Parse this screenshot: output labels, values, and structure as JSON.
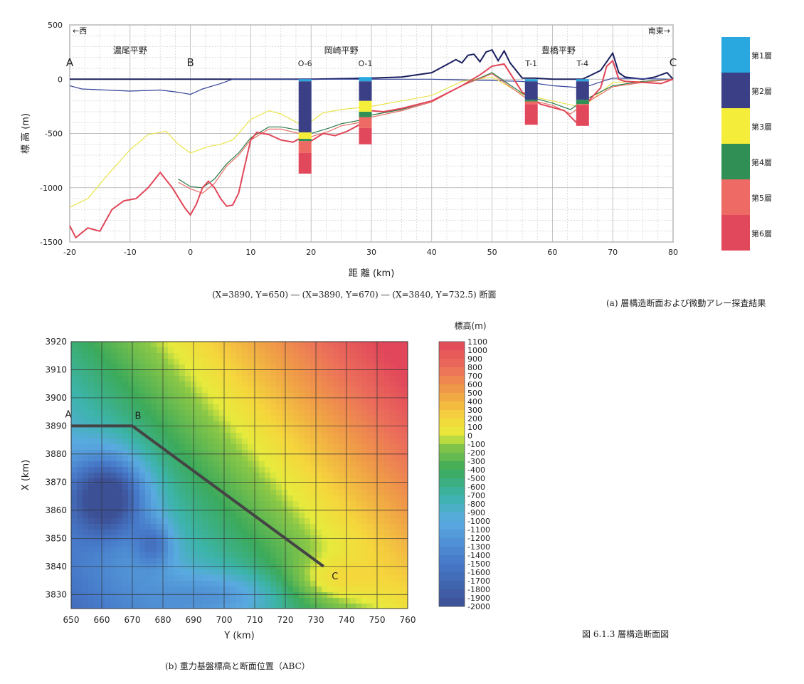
{
  "section": {
    "left_label": "←西",
    "right_label": "南東→",
    "ylabel": "標 高 (m)",
    "xlabel": "距 離 (km)",
    "xticks": [
      -20,
      -10,
      0,
      10,
      20,
      30,
      40,
      50,
      60,
      70,
      80
    ],
    "yticks": [
      500,
      0,
      -500,
      -1000,
      -1500
    ],
    "xlim": [
      -20,
      80
    ],
    "ylim": [
      -1500,
      500
    ],
    "point_labels": [
      {
        "text": "A",
        "x": -20
      },
      {
        "text": "B",
        "x": 0
      },
      {
        "text": "C",
        "x": 80
      }
    ],
    "plain_labels": [
      {
        "text": "濃尾平野",
        "x": -10
      },
      {
        "text": "岡崎平野",
        "x": 25
      },
      {
        "text": "豊橋平野",
        "x": 61
      }
    ],
    "subtitle": "(X=3890, Y=650) ― (X=3890, Y=670) ― (X=3840, Y=732.5) 断面",
    "caption": "(a) 層構造断面および微動アレー探査結果"
  },
  "layers_legend": [
    {
      "label": "第1層",
      "color": "#29a8e0"
    },
    {
      "label": "第2層",
      "color": "#3a3f86"
    },
    {
      "label": "第3層",
      "color": "#f4ee3a"
    },
    {
      "label": "第4層",
      "color": "#2f8f55"
    },
    {
      "label": "第5層",
      "color": "#ee6a64"
    },
    {
      "label": "第6層",
      "color": "#e2485c"
    }
  ],
  "map": {
    "colorbar_title": "標高(m)",
    "colorbar_ticks": [
      "1100",
      "1000",
      "900",
      "800",
      "700",
      "600",
      "500",
      "400",
      "300",
      "200",
      "100",
      "0",
      "-100",
      "-200",
      "-300",
      "-400",
      "-500",
      "-600",
      "-700",
      "-800",
      "-900",
      "-1000",
      "-1100",
      "-1200",
      "-1300",
      "-1400",
      "-1500",
      "-1600",
      "-1700",
      "-1800",
      "-1900",
      "-2000"
    ],
    "xlabel": "Y (km)",
    "ylabel": "X (km)",
    "xticks": [
      650,
      660,
      670,
      680,
      690,
      700,
      710,
      720,
      730,
      740,
      750,
      760
    ],
    "yticks": [
      3920,
      3910,
      3900,
      3890,
      3880,
      3870,
      3860,
      3850,
      3840,
      3830
    ],
    "point_labels": [
      "A",
      "B",
      "C"
    ],
    "caption": "(b) 重力基盤標高と断面位置（ABC）"
  },
  "figure_caption": "図 6.1.3 層構造断面図",
  "chart_data": [
    {
      "type": "line",
      "title": "",
      "xlabel": "距 離 (km)",
      "ylabel": "標 高 (m)",
      "xlim": [
        -20,
        80
      ],
      "ylim": [
        -1500,
        500
      ],
      "grid": true,
      "series": [
        {
          "name": "",
          "color": "#1a1f5e",
          "x": [
            -20,
            0,
            20,
            30,
            35,
            40,
            42,
            44,
            45,
            46,
            47,
            48,
            49,
            50,
            51,
            52,
            53,
            55,
            57,
            60,
            63,
            65,
            68,
            69,
            70,
            71,
            72,
            75,
            77,
            79,
            80
          ],
          "y": [
            0,
            0,
            0,
            10,
            20,
            60,
            120,
            180,
            150,
            220,
            230,
            160,
            250,
            270,
            170,
            260,
            150,
            10,
            10,
            0,
            0,
            0,
            80,
            160,
            240,
            60,
            20,
            0,
            20,
            60,
            0
          ]
        },
        {
          "name": "",
          "color": "#35449a",
          "x": [
            -20,
            -18,
            -10,
            -5,
            -2,
            0,
            2,
            5,
            7,
            10,
            20,
            30,
            40,
            55,
            60,
            65,
            70,
            80
          ],
          "y": [
            -60,
            -90,
            -110,
            -100,
            -120,
            -140,
            -90,
            -40,
            0,
            0,
            0,
            0,
            0,
            -20,
            -60,
            -80,
            10,
            0
          ]
        },
        {
          "name": "",
          "color": "#e9e44a",
          "x": [
            -20,
            -17,
            -14,
            -10,
            -7,
            -4,
            -2,
            0,
            3,
            5,
            7,
            8,
            10,
            13,
            15,
            18,
            20,
            22,
            25,
            30,
            35,
            40,
            45,
            50,
            55,
            60,
            65,
            70,
            75,
            80
          ],
          "y": [
            -1180,
            -1100,
            -900,
            -650,
            -510,
            -480,
            -600,
            -680,
            -620,
            -600,
            -560,
            -500,
            -370,
            -290,
            -320,
            -410,
            -390,
            -310,
            -280,
            -250,
            -200,
            -150,
            -20,
            20,
            -140,
            -200,
            -260,
            -30,
            -20,
            0
          ]
        },
        {
          "name": "",
          "color": "#2b7a48",
          "x": [
            -2,
            0,
            2,
            4,
            6,
            8,
            10,
            13,
            15,
            18,
            20,
            23,
            25,
            28,
            30,
            35,
            40,
            45,
            50,
            55,
            56,
            60,
            63,
            65,
            70,
            75,
            80
          ],
          "y": [
            -920,
            -990,
            -1000,
            -920,
            -780,
            -680,
            -540,
            -440,
            -440,
            -470,
            -500,
            -450,
            -410,
            -380,
            -330,
            -280,
            -200,
            -60,
            60,
            -130,
            -160,
            -220,
            -280,
            -200,
            -60,
            -20,
            0
          ]
        },
        {
          "name": "",
          "color": "#e86f66",
          "x": [
            -2,
            0,
            2,
            4,
            6,
            8,
            10,
            13,
            15,
            18,
            20,
            23,
            25,
            28,
            30,
            35,
            40,
            45,
            50,
            55,
            56,
            60,
            63,
            65,
            70,
            75,
            80
          ],
          "y": [
            -950,
            -1010,
            -1050,
            -960,
            -800,
            -700,
            -560,
            -460,
            -460,
            -500,
            -530,
            -480,
            -430,
            -400,
            -350,
            -290,
            -210,
            -60,
            50,
            -150,
            -190,
            -240,
            -320,
            -240,
            -70,
            -30,
            0
          ]
        },
        {
          "name": "",
          "color": "#e04658",
          "x": [
            -20,
            -19,
            -17,
            -15,
            -13,
            -11,
            -9,
            -7,
            -5,
            -3,
            -1,
            0,
            1,
            2,
            3,
            4,
            5,
            6,
            7,
            8,
            9,
            10,
            11,
            13,
            15,
            17,
            18,
            20,
            22,
            24,
            26,
            28,
            30,
            32,
            35,
            40,
            45,
            48,
            50,
            52,
            55,
            56,
            58,
            60,
            62,
            64,
            65,
            66,
            68,
            69,
            70,
            71,
            72,
            75,
            78,
            80
          ],
          "y": [
            -1350,
            -1460,
            -1370,
            -1400,
            -1200,
            -1120,
            -1100,
            -1000,
            -860,
            -1000,
            -1180,
            -1250,
            -1150,
            -1000,
            -940,
            -1000,
            -1100,
            -1170,
            -1160,
            -1050,
            -800,
            -560,
            -490,
            -510,
            -560,
            -580,
            -550,
            -570,
            -500,
            -520,
            -480,
            -420,
            -290,
            -300,
            -270,
            -200,
            -60,
            40,
            120,
            140,
            -120,
            -150,
            -230,
            -260,
            -290,
            -400,
            -370,
            -200,
            -80,
            120,
            170,
            0,
            -20,
            -30,
            -40,
            0
          ]
        }
      ],
      "boreholes": [
        {
          "name": "O-6",
          "x": 19,
          "layers": [
            [
              0,
              -20,
              "#29a8e0"
            ],
            [
              -20,
              -490,
              "#3a3f86"
            ],
            [
              -490,
              -550,
              "#f4ee3a"
            ],
            [
              -550,
              -570,
              "#2f8f55"
            ],
            [
              -570,
              -680,
              "#ee6a64"
            ],
            [
              -680,
              -870,
              "#e2485c"
            ]
          ]
        },
        {
          "name": "O-1",
          "x": 29,
          "layers": [
            [
              20,
              -20,
              "#29a8e0"
            ],
            [
              -20,
              -200,
              "#3a3f86"
            ],
            [
              -200,
              -300,
              "#f4ee3a"
            ],
            [
              -300,
              -350,
              "#2f8f55"
            ],
            [
              -350,
              -450,
              "#ee6a64"
            ],
            [
              -450,
              -600,
              "#e2485c"
            ]
          ]
        },
        {
          "name": "T-1",
          "x": 56.5,
          "layers": [
            [
              0,
              -20,
              "#29a8e0"
            ],
            [
              -20,
              -190,
              "#3a3f86"
            ],
            [
              -190,
              -205,
              "#2f8f55"
            ],
            [
              -205,
              -230,
              "#ee6a64"
            ],
            [
              -230,
              -420,
              "#e2485c"
            ]
          ]
        },
        {
          "name": "T-4",
          "x": 65,
          "layers": [
            [
              0,
              -20,
              "#29a8e0"
            ],
            [
              -20,
              -190,
              "#3a3f86"
            ],
            [
              -190,
              -230,
              "#2f8f55"
            ],
            [
              -230,
              -240,
              "#ee6a64"
            ],
            [
              -240,
              -430,
              "#e2485c"
            ]
          ]
        }
      ]
    },
    {
      "type": "heatmap",
      "title": "",
      "xlabel": "Y (km)",
      "ylabel": "X (km)",
      "xlim": [
        650,
        760
      ],
      "ylim": [
        3825,
        3920
      ],
      "colorbar_range": [
        -2000,
        1100
      ],
      "section_line": [
        [
          650,
          3890
        ],
        [
          670,
          3890
        ],
        [
          732.5,
          3840
        ]
      ]
    }
  ]
}
